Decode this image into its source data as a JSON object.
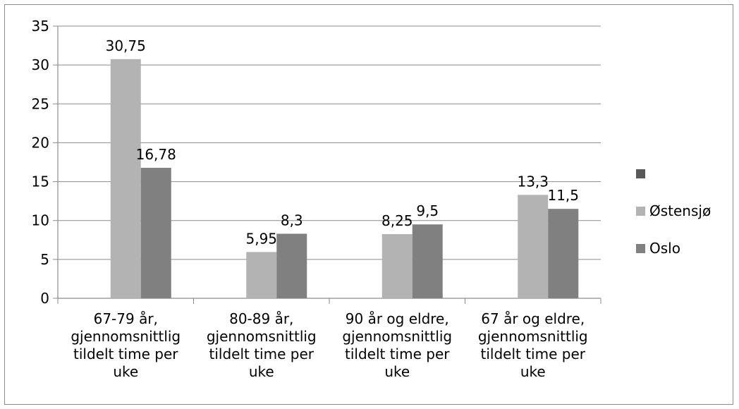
{
  "chart_data": {
    "type": "bar",
    "categories": [
      [
        "67-79 år,",
        "gjennomsnittlig",
        "tildelt time per",
        "uke"
      ],
      [
        "80-89 år,",
        "gjennomsnittlig",
        "tildelt time per",
        "uke"
      ],
      [
        "90 år og eldre,",
        "gjennomsnittlig",
        "tildelt time per",
        "uke"
      ],
      [
        "67 år og eldre,",
        "gjennomsnittlig",
        "tildelt time per",
        "uke"
      ]
    ],
    "series": [
      {
        "name": "",
        "color": "#595959",
        "values": [
          null,
          null,
          null,
          null
        ],
        "labels": [
          "",
          "",
          "",
          ""
        ]
      },
      {
        "name": "Østensjø",
        "color": "#b3b3b3",
        "values": [
          30.75,
          5.95,
          8.25,
          13.3
        ],
        "labels": [
          "30,75",
          "5,95",
          "8,25",
          "13,3"
        ]
      },
      {
        "name": "Oslo",
        "color": "#808080",
        "values": [
          16.78,
          8.3,
          9.5,
          11.5
        ],
        "labels": [
          "16,78",
          "8,3",
          "9,5",
          "11,5"
        ]
      }
    ],
    "yticks": [
      "0",
      "5",
      "10",
      "15",
      "20",
      "25",
      "30",
      "35"
    ],
    "ylim": [
      0,
      35
    ],
    "grid": true,
    "legend": "right",
    "title": "",
    "xlabel": "",
    "ylabel": ""
  }
}
